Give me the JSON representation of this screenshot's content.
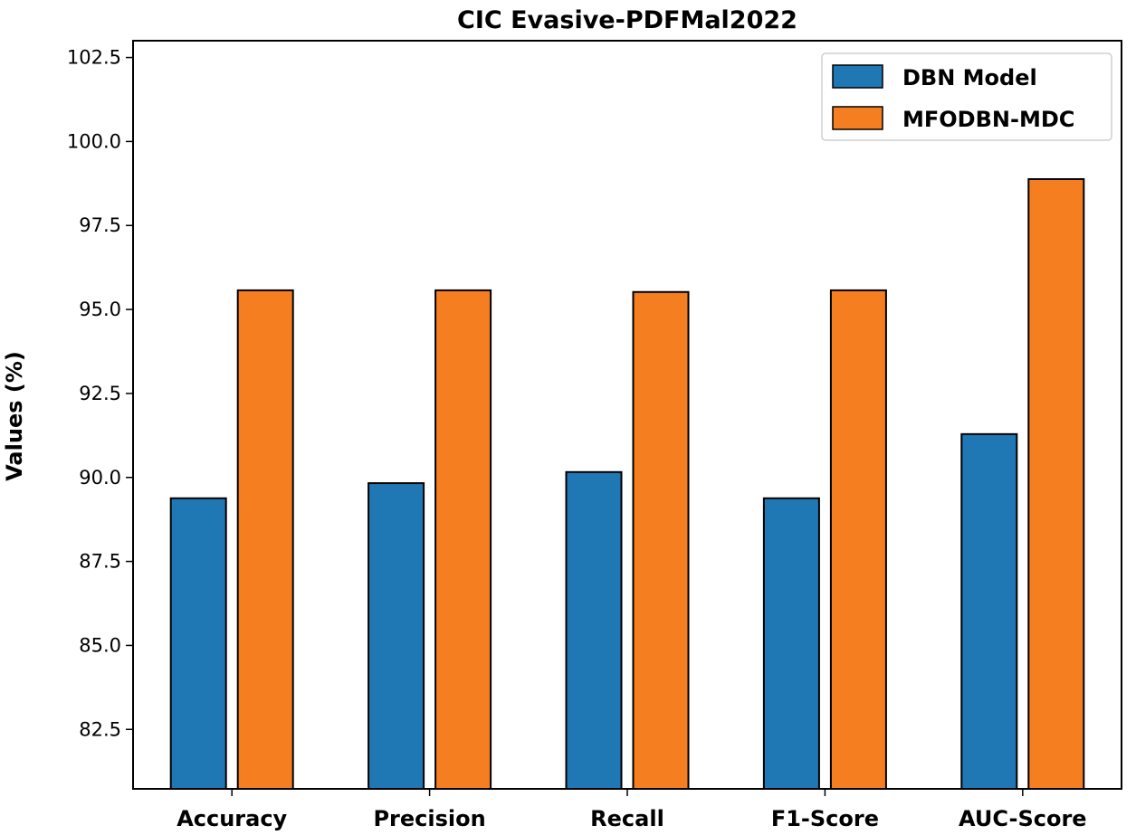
{
  "chart_data": {
    "type": "bar",
    "title": "CIC Evasive-PDFMal2022",
    "xlabel": "",
    "ylabel": "Values (%)",
    "categories": [
      "Accuracy",
      "Precision",
      "Recall",
      "F1-Score",
      "AUC-Score"
    ],
    "series": [
      {
        "name": "DBN Model",
        "color": "#1f77b4",
        "values": [
          89.38,
          89.83,
          90.16,
          89.38,
          91.29
        ]
      },
      {
        "name": "MFODBN-MDC",
        "color": "#f57f20",
        "values": [
          95.57,
          95.57,
          95.52,
          95.57,
          98.88
        ]
      }
    ],
    "ylim": [
      80.73,
      103.0
    ],
    "yticks": [
      82.5,
      85.0,
      87.5,
      90.0,
      92.5,
      95.0,
      97.5,
      100.0,
      102.5
    ],
    "ytick_labels": [
      "82.5",
      "85.0",
      "87.5",
      "90.0",
      "92.5",
      "95.0",
      "97.5",
      "100.0",
      "102.5"
    ],
    "grid": false,
    "legend_position": "top-right"
  }
}
